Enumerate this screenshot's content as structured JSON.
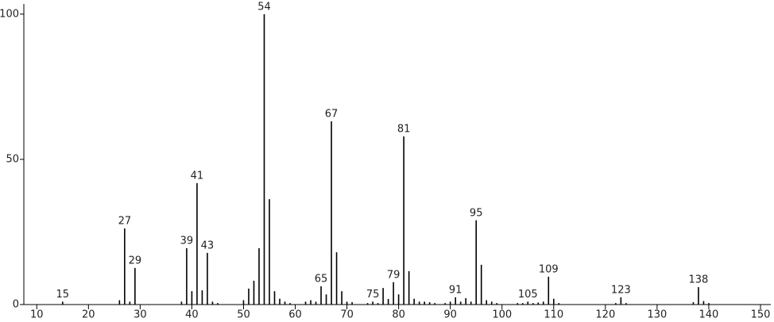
{
  "chart_data": {
    "type": "stem",
    "x": [
      15,
      26,
      27,
      28,
      29,
      38,
      39,
      40,
      41,
      42,
      43,
      44,
      45,
      50,
      51,
      52,
      53,
      54,
      55,
      56,
      57,
      58,
      59,
      62,
      63,
      64,
      65,
      66,
      67,
      68,
      69,
      70,
      71,
      74,
      75,
      76,
      77,
      78,
      79,
      80,
      81,
      82,
      83,
      84,
      85,
      86,
      87,
      89,
      90,
      91,
      92,
      93,
      94,
      95,
      96,
      97,
      98,
      99,
      103,
      104,
      105,
      106,
      107,
      108,
      109,
      110,
      111,
      122,
      123,
      124,
      137,
      138,
      139,
      140
    ],
    "values": [
      1,
      1.5,
      26.2,
      1,
      12.6,
      1,
      19.4,
      4.6,
      41.8,
      4.9,
      17.8,
      1,
      0.5,
      1.5,
      5.5,
      8.2,
      19.4,
      100,
      36.3,
      4.6,
      2,
      1,
      0.5,
      1,
      1.5,
      1,
      6.3,
      3.5,
      63.1,
      18,
      4.6,
      1,
      0.8,
      0.5,
      1,
      0.5,
      5.7,
      1.9,
      7.7,
      3.5,
      57.9,
      11.5,
      2,
      1,
      1,
      0.8,
      0.5,
      0.5,
      1,
      2.5,
      1,
      2.2,
      1,
      29,
      13.7,
      1.5,
      1,
      0.5,
      0.5,
      0.5,
      1,
      0.5,
      0.7,
      1,
      9.6,
      2,
      0.5,
      0.5,
      2.5,
      0.5,
      0.8,
      6,
      1.2,
      0.5
    ],
    "peak_labels": [
      15,
      27,
      29,
      39,
      41,
      43,
      54,
      65,
      67,
      75,
      79,
      81,
      91,
      95,
      105,
      109,
      123,
      138
    ],
    "color": "#000000",
    "xlim": [
      7.5,
      152
    ],
    "xticks": [
      10,
      20,
      30,
      40,
      50,
      60,
      70,
      80,
      90,
      100,
      110,
      120,
      130,
      140,
      150
    ],
    "ylim": [
      0,
      103.5
    ],
    "yticks": [
      0,
      50,
      100
    ]
  }
}
